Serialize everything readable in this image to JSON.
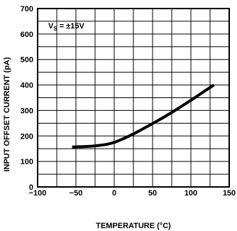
{
  "chart_data": {
    "type": "line",
    "title": "",
    "xlabel": "TEMPERATURE (°C)",
    "ylabel": "INPUT OFFSET CURRENT (pA)",
    "xlim": [
      -100,
      150
    ],
    "ylim": [
      0,
      700
    ],
    "x_ticks": [
      -100,
      -50,
      0,
      50,
      100,
      150
    ],
    "x_tick_labels": [
      "−100",
      "−50",
      "0",
      "50",
      "100",
      "150"
    ],
    "y_ticks": [
      0,
      100,
      200,
      300,
      400,
      500,
      600,
      700
    ],
    "y_tick_labels": [
      "0",
      "100",
      "200",
      "300",
      "400",
      "500",
      "600",
      "700"
    ],
    "x_grid_step": 25,
    "y_grid_step": 50,
    "grid": true,
    "annotation": {
      "main": "V",
      "sub": "S",
      "rest": " = ±15V"
    },
    "series": [
      {
        "x": [
          -55,
          -40,
          -25,
          -10,
          0,
          10,
          25,
          40,
          55,
          70,
          85,
          100,
          115,
          130
        ],
        "y": [
          157,
          158,
          161,
          167,
          175,
          187,
          208,
          232,
          257,
          283,
          311,
          340,
          370,
          400
        ]
      }
    ]
  }
}
